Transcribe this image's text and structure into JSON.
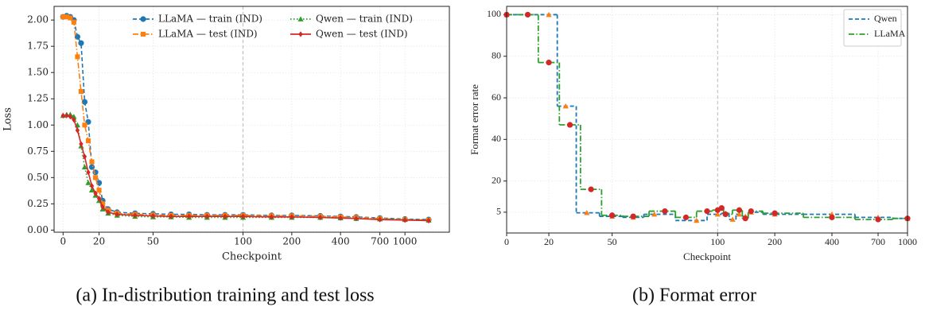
{
  "chart_data": [
    {
      "type": "line",
      "caption": "(a) In-distribution training and test loss",
      "xlabel": "Checkpoint",
      "ylabel": "Loss",
      "xscale": "linear-log",
      "vline": 100,
      "grid": true,
      "legend": "upper right",
      "legend_columns": 2,
      "xlim": [
        -5,
        1880
      ],
      "ylim": [
        -0.02,
        2.13
      ],
      "xticks": [
        0,
        20,
        50,
        100,
        200,
        400,
        700,
        1000
      ],
      "yticks": [
        {
          "value": 0,
          "label": "0.00"
        },
        {
          "value": 0.25,
          "label": "0.25"
        },
        {
          "value": 0.5,
          "label": "0.50"
        },
        {
          "value": 0.75,
          "label": "0.75"
        },
        {
          "value": 1,
          "label": "1.00"
        },
        {
          "value": 1.25,
          "label": "1.25"
        },
        {
          "value": 1.5,
          "label": "1.50"
        },
        {
          "value": 1.75,
          "label": "1.75"
        },
        {
          "value": 2,
          "label": "2.00"
        }
      ],
      "x": [
        0,
        2,
        4,
        6,
        8,
        10,
        12,
        14,
        16,
        18,
        20,
        22,
        25,
        30,
        40,
        50,
        60,
        70,
        80,
        90,
        100,
        150,
        200,
        300,
        400,
        500,
        700,
        1000,
        1400
      ],
      "series": [
        {
          "name": "LLaMA — train (IND)",
          "color": "#1f77b4",
          "linestyle": "dashed",
          "marker": "circle",
          "values": [
            2.03,
            2.04,
            2.03,
            2.0,
            1.84,
            1.78,
            1.22,
            1.03,
            0.6,
            0.55,
            0.45,
            0.28,
            0.2,
            0.17,
            0.16,
            0.155,
            0.15,
            0.15,
            0.145,
            0.145,
            0.145,
            0.14,
            0.14,
            0.135,
            0.13,
            0.125,
            0.115,
            0.105,
            0.1
          ]
        },
        {
          "name": "LLaMA — test (IND)",
          "color": "#ff7f0e",
          "linestyle": "dashdot",
          "marker": "square",
          "values": [
            2.03,
            2.03,
            2.02,
            1.98,
            1.65,
            1.32,
            1.0,
            0.85,
            0.65,
            0.5,
            0.38,
            0.25,
            0.19,
            0.16,
            0.15,
            0.145,
            0.14,
            0.14,
            0.14,
            0.14,
            0.14,
            0.135,
            0.135,
            0.13,
            0.125,
            0.12,
            0.11,
            0.1,
            0.095
          ]
        },
        {
          "name": "Qwen — train (IND)",
          "color": "#2ca02c",
          "linestyle": "dotted",
          "marker": "triangle",
          "values": [
            1.09,
            1.1,
            1.1,
            1.08,
            1.0,
            0.8,
            0.6,
            0.45,
            0.38,
            0.33,
            0.28,
            0.2,
            0.16,
            0.14,
            0.13,
            0.125,
            0.125,
            0.12,
            0.12,
            0.12,
            0.12,
            0.12,
            0.12,
            0.12,
            0.115,
            0.11,
            0.105,
            0.1,
            0.095
          ]
        },
        {
          "name": "Qwen — test (IND)",
          "color": "#d62728",
          "linestyle": "solid",
          "marker": "diamond",
          "values": [
            1.09,
            1.09,
            1.08,
            1.05,
            0.95,
            0.82,
            0.7,
            0.55,
            0.42,
            0.35,
            0.3,
            0.22,
            0.17,
            0.15,
            0.14,
            0.135,
            0.13,
            0.13,
            0.13,
            0.13,
            0.13,
            0.125,
            0.125,
            0.12,
            0.115,
            0.11,
            0.1,
            0.095,
            0.09
          ]
        }
      ]
    },
    {
      "type": "step",
      "caption": "(b) Format error",
      "xlabel": "Checkpoint",
      "ylabel": "Format error rate",
      "xscale": "linear-log",
      "vline": 100,
      "grid": true,
      "legend": "upper right",
      "legend_columns": 1,
      "xlim": [
        0,
        1000
      ],
      "ylim": [
        -5,
        104
      ],
      "xticks": [
        0,
        20,
        50,
        100,
        200,
        400,
        700,
        1000
      ],
      "yticks": [
        5,
        20,
        40,
        60,
        80,
        100
      ],
      "series": [
        {
          "name": "Qwen",
          "color": "#1f77b4",
          "linestyle": "dashed",
          "marker": "triangle",
          "marker_color": "#ff7f0e",
          "x": [
            0,
            20,
            28,
            38,
            50,
            60,
            70,
            90,
            100,
            110,
            120,
            130,
            140,
            150,
            200,
            400,
            700,
            1000
          ],
          "values": [
            100,
            100,
            56,
            4.7,
            3,
            2.5,
            4,
            1,
            4,
            4.5,
            1.5,
            4,
            3,
            5,
            4,
            4,
            2.5,
            2
          ]
        },
        {
          "name": "LLaMA",
          "color": "#2ca02c",
          "linestyle": "dashdot",
          "marker": "circle",
          "marker_color": "#d62728",
          "x": [
            0,
            10,
            20,
            30,
            40,
            50,
            60,
            75,
            85,
            95,
            100,
            105,
            110,
            130,
            140,
            150,
            200,
            400,
            700,
            1000
          ],
          "values": [
            100,
            100,
            77,
            47,
            16,
            3.5,
            3,
            5.5,
            2.5,
            5.5,
            6,
            7,
            4,
            6,
            2,
            5.5,
            4.5,
            2.5,
            1.5,
            2
          ]
        }
      ]
    }
  ]
}
